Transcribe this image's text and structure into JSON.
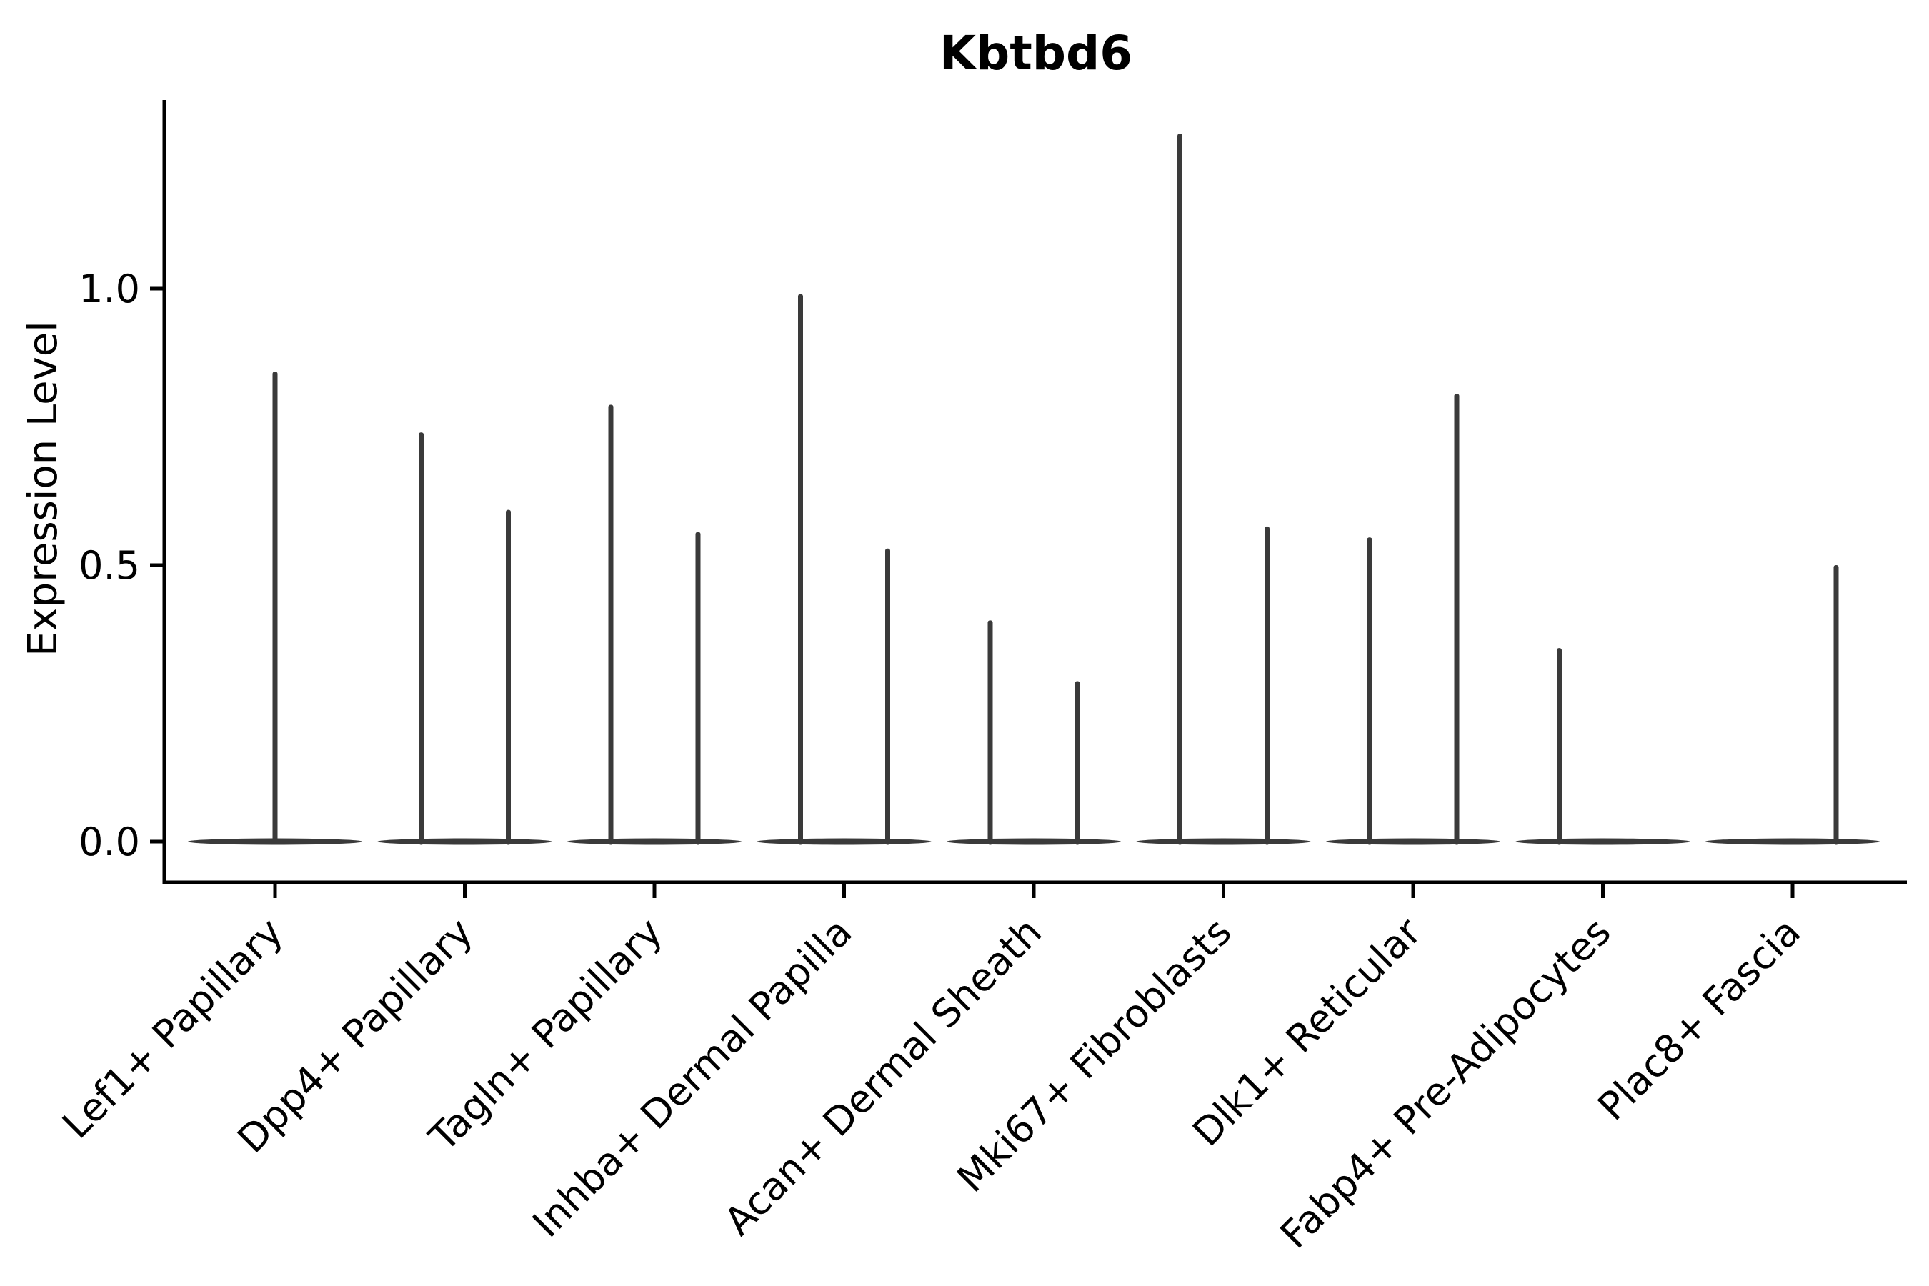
{
  "figure": {
    "background": "#ffffff",
    "axis_color": "#000000",
    "violin_color": "#3a3a3a"
  },
  "chart_data": {
    "type": "violin",
    "title": "Kbtbd6",
    "xlabel": "",
    "ylabel": "Expression Level",
    "ylim": [
      -0.07,
      1.34
    ],
    "grid": false,
    "legend": "none",
    "yticks": [
      {
        "label": "0.0",
        "value": 0.0
      },
      {
        "label": "0.5",
        "value": 0.5
      },
      {
        "label": "1.0",
        "value": 1.0
      }
    ],
    "categories": [
      "Lef1+ Papillary",
      "Dpp4+ Papillary",
      "Tagln+ Papillary",
      "Inhba+ Dermal Papilla",
      "Acan+ Dermal Sheath",
      "Mki67+ Fibroblasts",
      "Dlk1+ Reticular",
      "Fabp4+ Pre-Adipocytes",
      "Plac8+ Fascia"
    ],
    "violins": [
      {
        "category": "Lef1+ Papillary",
        "body_min": 0.0,
        "spikes": [
          {
            "position": "center",
            "max": 0.85
          }
        ]
      },
      {
        "category": "Dpp4+ Papillary",
        "body_min": 0.0,
        "spikes": [
          {
            "position": "left",
            "max": 0.74
          },
          {
            "position": "right",
            "max": 0.6
          }
        ]
      },
      {
        "category": "Tagln+ Papillary",
        "body_min": 0.0,
        "spikes": [
          {
            "position": "left",
            "max": 0.79
          },
          {
            "position": "right",
            "max": 0.56
          }
        ]
      },
      {
        "category": "Inhba+ Dermal Papilla",
        "body_min": 0.0,
        "spikes": [
          {
            "position": "left",
            "max": 0.99
          },
          {
            "position": "right",
            "max": 0.53
          }
        ]
      },
      {
        "category": "Acan+ Dermal Sheath",
        "body_min": 0.0,
        "spikes": [
          {
            "position": "left",
            "max": 0.4
          },
          {
            "position": "right",
            "max": 0.29
          }
        ]
      },
      {
        "category": "Mki67+ Fibroblasts",
        "body_min": 0.0,
        "spikes": [
          {
            "position": "left",
            "max": 1.28
          },
          {
            "position": "right",
            "max": 0.57
          }
        ]
      },
      {
        "category": "Dlk1+ Reticular",
        "body_min": 0.0,
        "spikes": [
          {
            "position": "left",
            "max": 0.55
          },
          {
            "position": "right",
            "max": 0.81
          }
        ]
      },
      {
        "category": "Fabp4+ Pre-Adipocytes",
        "body_min": 0.0,
        "spikes": [
          {
            "position": "left",
            "max": 0.35
          }
        ]
      },
      {
        "category": "Plac8+ Fascia",
        "body_min": 0.0,
        "spikes": [
          {
            "position": "right",
            "max": 0.5
          }
        ]
      }
    ]
  }
}
